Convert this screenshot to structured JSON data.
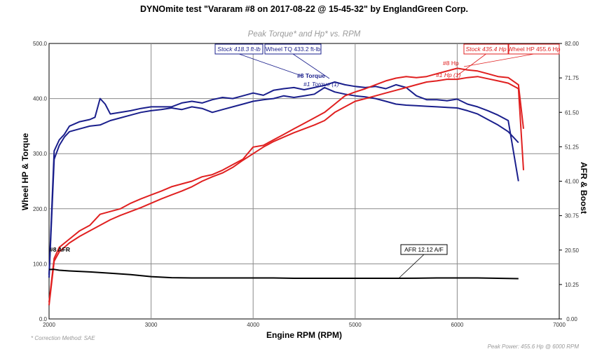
{
  "chart_data": {
    "type": "line",
    "title": "DYNOmite test \"Vararam #8 on 2017-08-22 @ 15-45-32\" by EnglandGreen Corp.",
    "subtitle": "Peak Torque* and Hp* vs. RPM",
    "xlabel": "Engine RPM (RPM)",
    "ylabel": "Wheel HP & Torque",
    "y2label": "AFR & Boost",
    "xlim": [
      2000,
      7000
    ],
    "ylim": [
      0,
      500
    ],
    "y2lim": [
      0,
      82
    ],
    "x_ticks": [
      2000,
      3000,
      4000,
      5000,
      6000,
      7000
    ],
    "y_ticks": [
      "0.0",
      "100.0",
      "200.0",
      "300.0",
      "400.0",
      "500.0"
    ],
    "y2_ticks": [
      "0.00",
      "10.25",
      "20.50",
      "30.75",
      "41.00",
      "51.25",
      "61.50",
      "71.75",
      "82.00"
    ],
    "grid": true,
    "series": [
      {
        "name": "#8 Torque",
        "color": "#1a1f8c",
        "axis": "left",
        "x": [
          2000,
          2050,
          2100,
          2150,
          2200,
          2300,
          2400,
          2450,
          2500,
          2550,
          2600,
          2700,
          2800,
          2900,
          3000,
          3100,
          3200,
          3300,
          3400,
          3500,
          3600,
          3700,
          3800,
          3900,
          4000,
          4100,
          4200,
          4300,
          4400,
          4500,
          4600,
          4700,
          4800,
          4900,
          5000,
          5100,
          5200,
          5300,
          5400,
          5500,
          5600,
          5700,
          5800,
          5900,
          6000,
          6100,
          6200,
          6300,
          6400,
          6500,
          6600
        ],
        "values": [
          80,
          305,
          325,
          335,
          350,
          358,
          362,
          366,
          400,
          390,
          372,
          375,
          378,
          382,
          385,
          385,
          385,
          392,
          395,
          392,
          398,
          402,
          400,
          405,
          410,
          406,
          415,
          418,
          420,
          416,
          420,
          424,
          430,
          425,
          422,
          420,
          422,
          418,
          425,
          420,
          405,
          398,
          398,
          396,
          399,
          390,
          385,
          378,
          370,
          360,
          250
        ]
      },
      {
        "name": "#1 Torque (1)",
        "color": "#1a1f8c",
        "axis": "left",
        "x": [
          2000,
          2050,
          2100,
          2150,
          2200,
          2300,
          2400,
          2500,
          2600,
          2700,
          2800,
          2900,
          3000,
          3100,
          3200,
          3300,
          3400,
          3500,
          3600,
          3700,
          3800,
          3900,
          4000,
          4100,
          4200,
          4300,
          4400,
          4500,
          4600,
          4700,
          4800,
          4900,
          5000,
          5100,
          5200,
          5300,
          5400,
          5500,
          5600,
          5700,
          5800,
          5900,
          6000,
          6100,
          6200,
          6300,
          6400,
          6500,
          6600
        ],
        "values": [
          75,
          290,
          315,
          330,
          340,
          345,
          350,
          352,
          360,
          365,
          370,
          375,
          378,
          380,
          383,
          380,
          385,
          382,
          375,
          380,
          385,
          390,
          395,
          398,
          400,
          405,
          402,
          405,
          408,
          420,
          412,
          408,
          405,
          403,
          400,
          395,
          390,
          388,
          387,
          386,
          385,
          384,
          383,
          378,
          372,
          362,
          352,
          340,
          320
        ]
      },
      {
        "name": "#8 Hp",
        "color": "#e02020",
        "axis": "left",
        "x": [
          2000,
          2050,
          2100,
          2200,
          2300,
          2400,
          2500,
          2600,
          2700,
          2800,
          2900,
          3000,
          3100,
          3200,
          3300,
          3400,
          3500,
          3600,
          3700,
          3800,
          3900,
          4000,
          4100,
          4200,
          4300,
          4400,
          4500,
          4600,
          4700,
          4800,
          4900,
          5000,
          5100,
          5200,
          5300,
          5400,
          5500,
          5600,
          5700,
          5800,
          5900,
          6000,
          6100,
          6200,
          6300,
          6400,
          6500,
          6600,
          6650
        ],
        "values": [
          30,
          110,
          130,
          145,
          160,
          170,
          190,
          195,
          200,
          210,
          218,
          225,
          232,
          240,
          245,
          250,
          258,
          262,
          270,
          280,
          290,
          312,
          315,
          325,
          335,
          345,
          355,
          365,
          375,
          390,
          405,
          412,
          418,
          425,
          432,
          437,
          440,
          438,
          440,
          445,
          450,
          455,
          452,
          450,
          445,
          440,
          438,
          425,
          345
        ]
      },
      {
        "name": "#1 Hp (1)",
        "color": "#e02020",
        "axis": "left",
        "x": [
          2000,
          2050,
          2100,
          2200,
          2300,
          2400,
          2500,
          2600,
          2700,
          2800,
          2900,
          3000,
          3100,
          3200,
          3300,
          3400,
          3500,
          3600,
          3700,
          3800,
          3900,
          4000,
          4100,
          4200,
          4300,
          4400,
          4500,
          4600,
          4700,
          4800,
          4900,
          5000,
          5100,
          5200,
          5300,
          5400,
          5500,
          5600,
          5700,
          5800,
          5900,
          6000,
          6100,
          6200,
          6300,
          6400,
          6500,
          6600,
          6650
        ],
        "values": [
          25,
          105,
          122,
          138,
          150,
          160,
          170,
          180,
          188,
          195,
          202,
          210,
          218,
          225,
          232,
          240,
          250,
          258,
          265,
          275,
          288,
          300,
          312,
          322,
          330,
          338,
          345,
          352,
          360,
          375,
          385,
          395,
          400,
          405,
          410,
          415,
          420,
          425,
          430,
          432,
          435,
          435,
          438,
          440,
          436,
          432,
          428,
          418,
          270
        ]
      },
      {
        "name": "#8 AFR",
        "color": "#000000",
        "axis": "right",
        "x": [
          2000,
          2050,
          2100,
          2200,
          2400,
          2600,
          2800,
          3000,
          3200,
          3400,
          3600,
          3800,
          4000,
          4200,
          4400,
          4600,
          4800,
          5000,
          5200,
          5400,
          5600,
          5800,
          6000,
          6200,
          6400,
          6600
        ],
        "values": [
          14.7,
          14.75,
          14.5,
          14.3,
          14.0,
          13.6,
          13.2,
          12.6,
          12.3,
          12.2,
          12.2,
          12.2,
          12.2,
          12.2,
          12.1,
          12.1,
          12.1,
          12.1,
          12.1,
          12.1,
          12.12,
          12.2,
          12.2,
          12.2,
          12.1,
          12.0
        ]
      }
    ],
    "annotations": [
      {
        "text": "Stock 418.3 ft-lb",
        "box": true,
        "color": "#1a1f8c",
        "target_x": 4700,
        "target_y": 420
      },
      {
        "text": "Wheel TQ 433.2 ft-lb",
        "box": true,
        "color": "#1a1f8c",
        "target_x": 4850,
        "target_y": 430
      },
      {
        "text": "#8 Torque",
        "box": false,
        "color": "#1a1f8c"
      },
      {
        "text": "#1 Torque (1)",
        "box": false,
        "color": "#1a1f8c"
      },
      {
        "text": "Stock 435.4 Hp",
        "box": true,
        "color": "#e02020",
        "target_x": 6000,
        "target_y": 435
      },
      {
        "text": "Wheel HP 455.6 Hp",
        "box": true,
        "color": "#e02020",
        "target_x": 6000,
        "target_y": 455
      },
      {
        "text": "#8 Hp",
        "box": false,
        "color": "#e02020"
      },
      {
        "text": "#1 Hp (1)",
        "box": false,
        "color": "#e02020"
      },
      {
        "text": "#8 AFR",
        "box": false,
        "color": "#000000"
      },
      {
        "text": "AFR 12.12 A/F",
        "box": true,
        "color": "#000000",
        "target_x": 5400,
        "target_y2": 12.12
      }
    ],
    "notes": {
      "correction": "* Correction Method: SAE",
      "peak": "Peak Power: 455.6 Hp @ 6000 RPM"
    }
  }
}
